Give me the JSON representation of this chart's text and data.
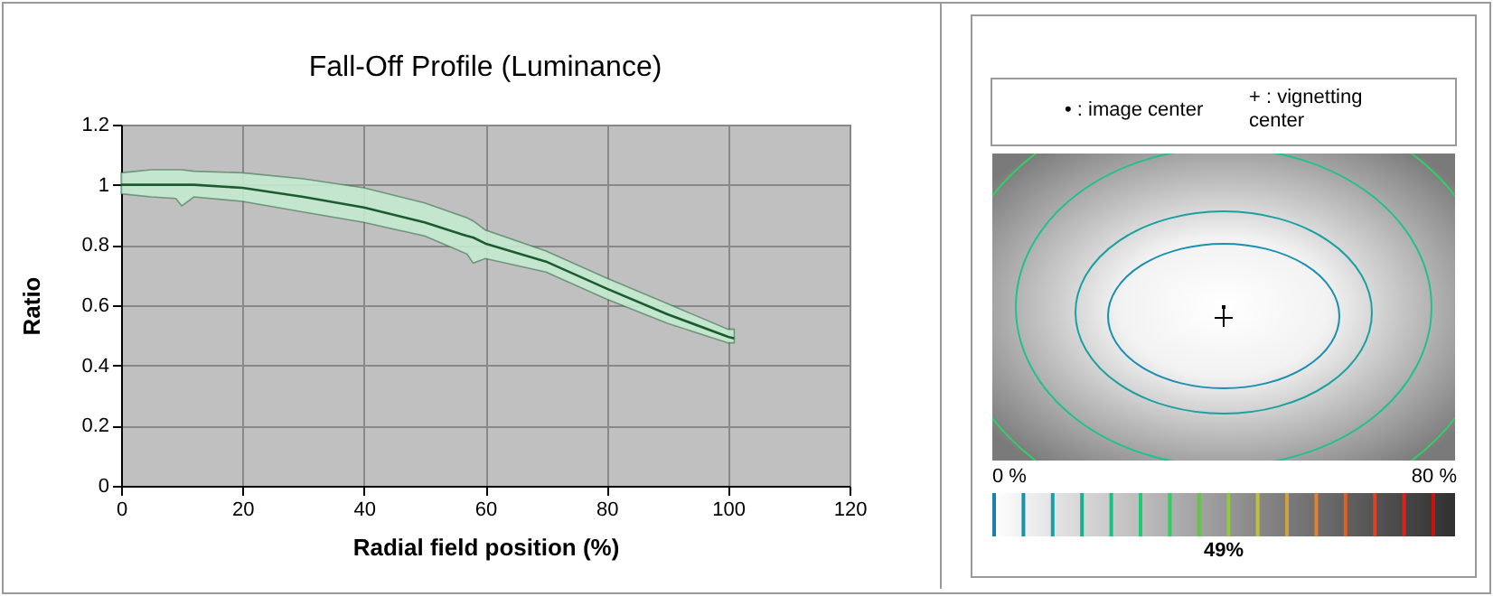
{
  "chart_data": {
    "type": "line",
    "title": "Fall-Off Profile (Luminance)",
    "xlabel": "Radial field position (%)",
    "ylabel": "Ratio",
    "x": [
      0,
      5,
      9,
      10,
      12,
      20,
      30,
      40,
      50,
      57,
      58,
      60,
      70,
      80,
      90,
      100,
      101
    ],
    "series": [
      {
        "color": "#1a5c2e",
        "values": [
          1.0,
          1.0,
          1.0,
          1.0,
          1.0,
          0.99,
          0.96,
          0.925,
          0.875,
          0.83,
          0.825,
          0.805,
          0.745,
          0.655,
          0.57,
          0.495,
          0.49
        ],
        "lower": [
          0.97,
          0.96,
          0.955,
          0.93,
          0.96,
          0.945,
          0.91,
          0.875,
          0.83,
          0.77,
          0.74,
          0.755,
          0.71,
          0.62,
          0.54,
          0.475,
          0.475
        ],
        "upper": [
          1.04,
          1.05,
          1.05,
          1.05,
          1.045,
          1.04,
          1.02,
          0.99,
          0.94,
          0.89,
          0.88,
          0.85,
          0.78,
          0.69,
          0.605,
          0.52,
          0.52
        ]
      }
    ],
    "xlim": [
      0,
      120
    ],
    "xticks": [
      0,
      20,
      40,
      60,
      80,
      100,
      120
    ],
    "ylim": [
      0,
      1.2
    ],
    "yticks": [
      0,
      0.2,
      0.4,
      0.6,
      0.8,
      1,
      1.2
    ],
    "grid": true,
    "annotations": [
      "• : image center",
      "+ : vignetting center",
      "0 %",
      "80 %",
      "49%"
    ]
  }
}
